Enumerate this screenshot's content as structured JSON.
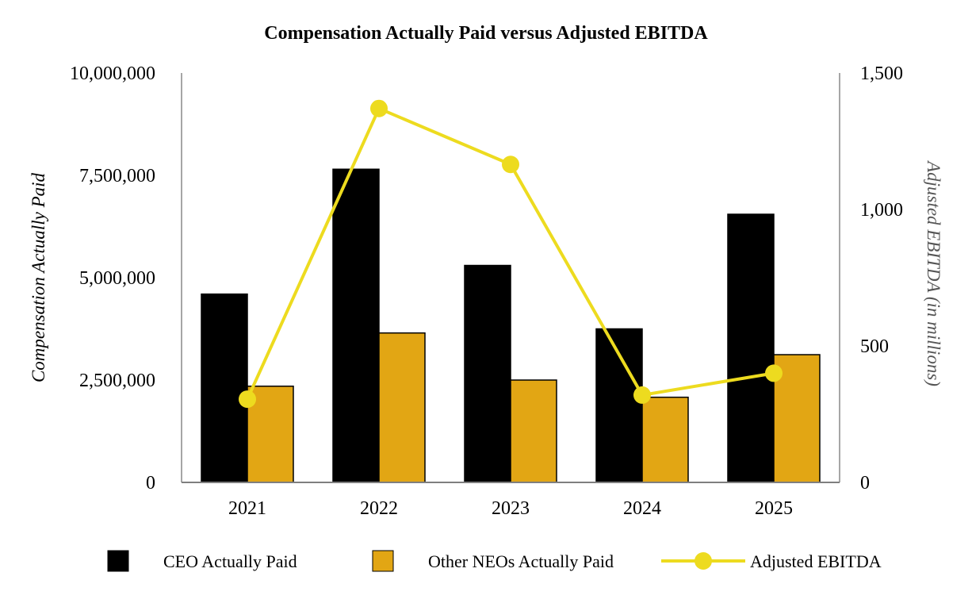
{
  "chart_data": {
    "type": "bar",
    "title": "Compensation Actually Paid versus Adjusted EBITDA",
    "categories": [
      "2021",
      "2022",
      "2023",
      "2024",
      "2025"
    ],
    "ylabel": "Compensation Actually Paid",
    "y2label": "Adjusted EBITDA (in millions)",
    "ylim": [
      0,
      10000000
    ],
    "y2lim": [
      0,
      1500
    ],
    "yticks": [
      "0",
      "2,500,000",
      "5,000,000",
      "7,500,000",
      "10,000,000"
    ],
    "y2ticks": [
      "0",
      "500",
      "1,000",
      "1,500"
    ],
    "grid": false,
    "legend_position": "bottom",
    "series": [
      {
        "name": "CEO Actually Paid",
        "type": "bar",
        "axis": "left",
        "color": "#000000",
        "values": [
          4600000,
          7650000,
          5300000,
          3750000,
          6550000
        ]
      },
      {
        "name": "Other NEOs Actually Paid",
        "type": "bar",
        "axis": "left",
        "color": "#E2A614",
        "values": [
          2350000,
          3650000,
          2500000,
          2080000,
          3120000
        ]
      },
      {
        "name": "Adjusted EBITDA",
        "type": "line",
        "axis": "right",
        "color": "#EDDB1F",
        "values": [
          305,
          1370,
          1165,
          320,
          400
        ]
      }
    ]
  }
}
